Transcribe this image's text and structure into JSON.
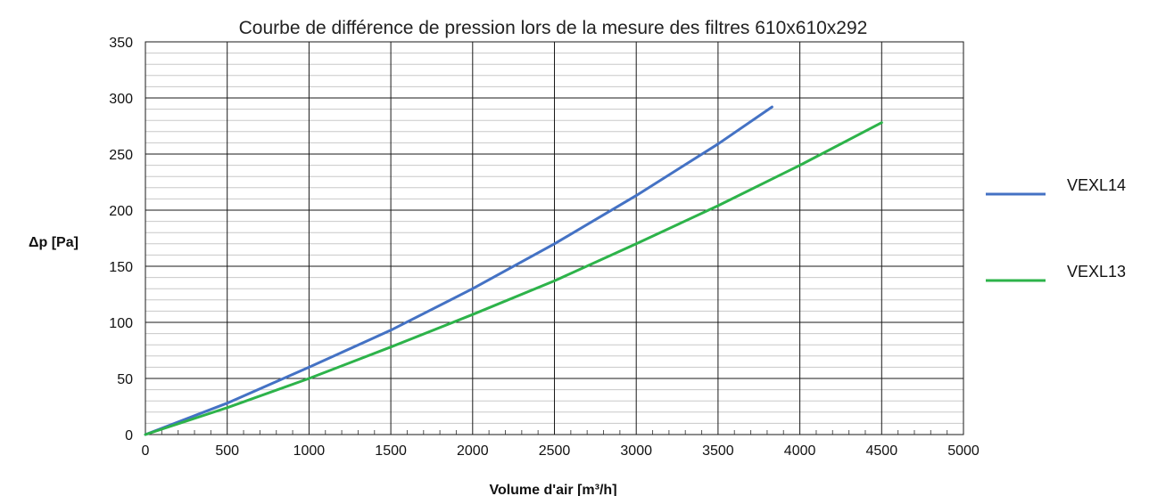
{
  "chart_data": {
    "type": "line",
    "title": "Courbe de différence de pression lors de la mesure des filtres 610x610x292",
    "xlabel": "Volume d'air [m³/h]",
    "ylabel": "Δp [Pa]",
    "xlim": [
      0,
      5000
    ],
    "ylim": [
      0,
      350
    ],
    "x_ticks": [
      "0",
      "500",
      "1000",
      "1500",
      "2000",
      "2500",
      "3000",
      "3500",
      "4000",
      "4500",
      "5000"
    ],
    "y_ticks": [
      "0",
      "50",
      "100",
      "150",
      "200",
      "250",
      "300",
      "350"
    ],
    "grid": true,
    "legend_position": "right",
    "series": [
      {
        "name": "VEXL14",
        "color": "#4472C4",
        "points": [
          [
            0,
            0
          ],
          [
            500,
            28
          ],
          [
            1000,
            60
          ],
          [
            1500,
            93
          ],
          [
            2000,
            130
          ],
          [
            2500,
            170
          ],
          [
            3000,
            213
          ],
          [
            3500,
            259
          ],
          [
            3830,
            292
          ]
        ]
      },
      {
        "name": "VEXL13",
        "color": "#2DB34A",
        "points": [
          [
            0,
            0
          ],
          [
            500,
            24
          ],
          [
            1000,
            50
          ],
          [
            1500,
            78
          ],
          [
            2000,
            107
          ],
          [
            2500,
            137
          ],
          [
            3000,
            170
          ],
          [
            3500,
            204
          ],
          [
            4000,
            240
          ],
          [
            4500,
            278
          ]
        ]
      }
    ]
  }
}
